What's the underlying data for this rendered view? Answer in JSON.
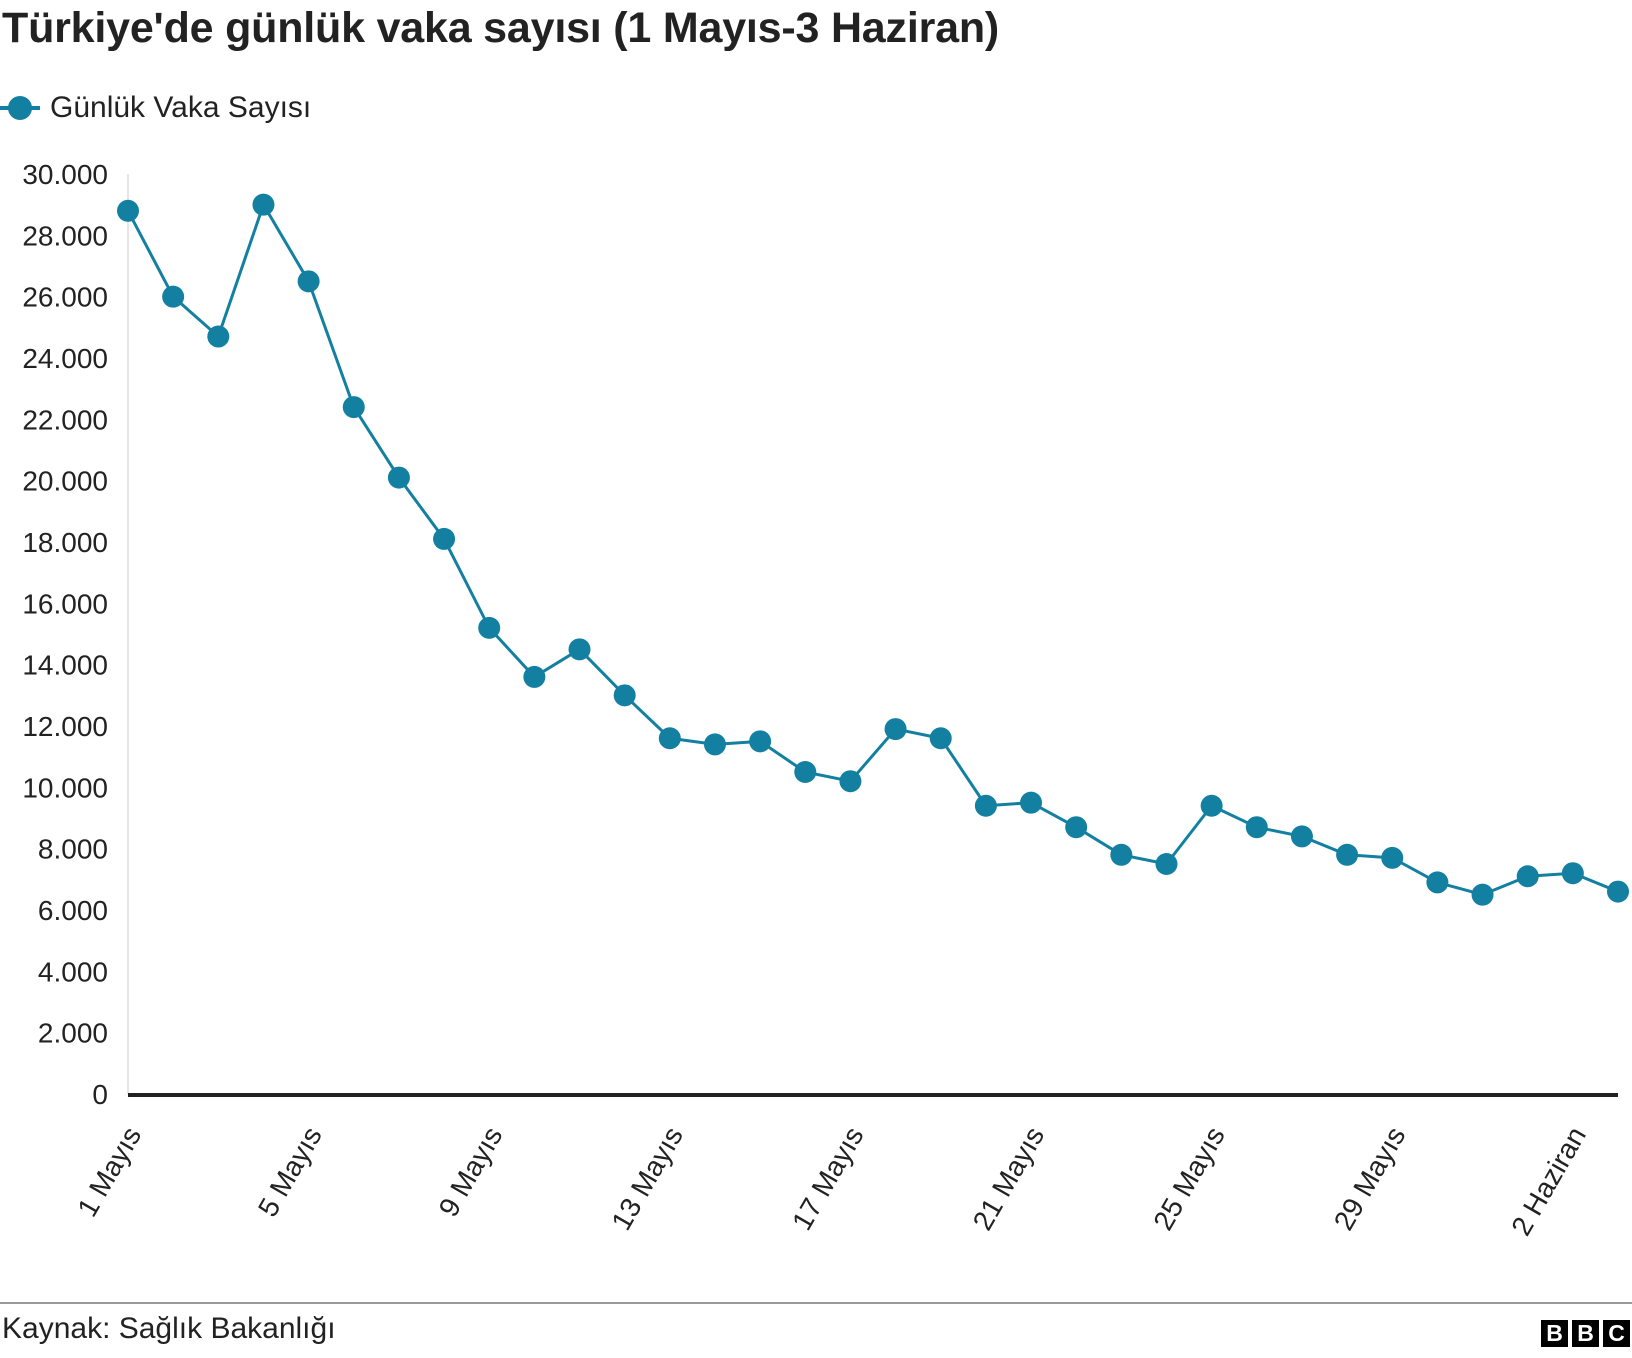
{
  "header": {
    "title": "Türkiye'de günlük vaka sayısı (1 Mayıs-3 Haziran)"
  },
  "legend": {
    "label": "Günlük Vaka Sayısı",
    "color": "#1380A1"
  },
  "chart_data": {
    "type": "line",
    "title": "Türkiye'de günlük vaka sayısı (1 Mayıs-3 Haziran)",
    "xlabel": "",
    "ylabel": "",
    "ylim": [
      0,
      30000
    ],
    "y_ticks": [
      0,
      2000,
      4000,
      6000,
      8000,
      10000,
      12000,
      14000,
      16000,
      18000,
      20000,
      22000,
      24000,
      26000,
      28000,
      30000
    ],
    "y_tick_labels": [
      "0",
      "2.000",
      "4.000",
      "6.000",
      "8.000",
      "10.000",
      "12.000",
      "14.000",
      "16.000",
      "18.000",
      "20.000",
      "22.000",
      "24.000",
      "26.000",
      "28.000",
      "30.000"
    ],
    "x_tick_labels": [
      "1 Mayıs",
      "5 Mayıs",
      "9 Mayıs",
      "13 Mayıs",
      "17 Mayıs",
      "21 Mayıs",
      "25 Mayıs",
      "29 Mayıs",
      "2 Haziran"
    ],
    "x_tick_dates": [
      "1 Mayıs",
      "5 Mayıs",
      "9 Mayıs",
      "13 Mayıs",
      "17 Mayıs",
      "21 Mayıs",
      "25 Mayıs",
      "29 Mayıs",
      "2 Haziran"
    ],
    "x": [
      "1 Mayıs",
      "2 Mayıs",
      "3 Mayıs",
      "4 Mayıs",
      "5 Mayıs",
      "6 Mayıs",
      "7 Mayıs",
      "8 Mayıs",
      "9 Mayıs",
      "10 Mayıs",
      "11 Mayıs",
      "12 Mayıs",
      "13 Mayıs",
      "14 Mayıs",
      "15 Mayıs",
      "16 Mayıs",
      "17 Mayıs",
      "18 Mayıs",
      "19 Mayıs",
      "20 Mayıs",
      "21 Mayıs",
      "22 Mayıs",
      "23 Mayıs",
      "24 Mayıs",
      "25 Mayıs",
      "26 Mayıs",
      "27 Mayıs",
      "28 Mayıs",
      "29 Mayıs",
      "30 Mayıs",
      "31 Mayıs",
      "1 Haziran",
      "2 Haziran",
      "3 Haziran"
    ],
    "series": [
      {
        "name": "Günlük Vaka Sayısı",
        "color": "#1380A1",
        "values": [
          28800,
          26000,
          24700,
          29000,
          26500,
          22400,
          20100,
          18100,
          15200,
          13600,
          14500,
          13000,
          11600,
          11400,
          11500,
          10500,
          10200,
          11900,
          11600,
          9400,
          9500,
          8700,
          7800,
          7500,
          9400,
          8700,
          8400,
          7800,
          7700,
          6900,
          6500,
          7100,
          7200,
          6600
        ]
      }
    ],
    "grid": false,
    "legend_position": "top-left"
  },
  "footer": {
    "source": "Kaynak: Sağlık Bakanlığı",
    "logo_letters": [
      "B",
      "B",
      "C"
    ]
  }
}
